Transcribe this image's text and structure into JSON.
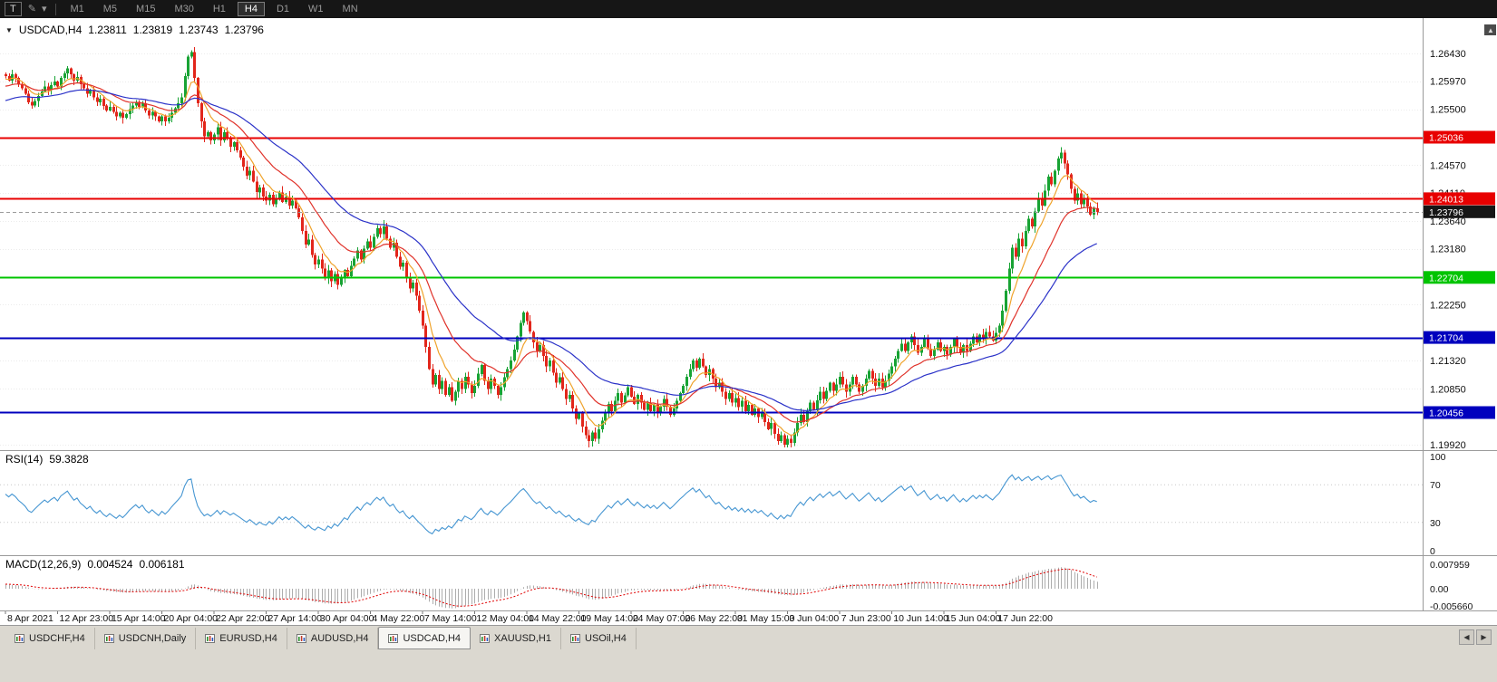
{
  "toolbar": {
    "t_button": "T",
    "pencil_icon": "✎",
    "caret_icon": "▾",
    "timeframes": [
      "M1",
      "M5",
      "M15",
      "M30",
      "H1",
      "H4",
      "D1",
      "W1",
      "MN"
    ],
    "active_timeframe": "H4"
  },
  "header": {
    "symbol": "USDCAD,H4",
    "open": "1.23811",
    "high": "1.23819",
    "low": "1.23743",
    "close": "1.23796"
  },
  "price_axis": {
    "ticks": [
      "1.26430",
      "1.25970",
      "1.25500",
      "1.24570",
      "1.24110",
      "1.23640",
      "1.23180",
      "1.22250",
      "1.21320",
      "1.20850",
      "1.19920"
    ],
    "levels": [
      {
        "value": "1.25036",
        "color": "#E80000"
      },
      {
        "value": "1.24013",
        "color": "#E80000"
      },
      {
        "value": "1.22704",
        "color": "#00C400"
      },
      {
        "value": "1.21704",
        "color": "#0000BE"
      },
      {
        "value": "1.20456",
        "color": "#0000BE"
      }
    ],
    "current": {
      "value": "1.23796",
      "color": "#161616"
    }
  },
  "time_axis": {
    "labels": [
      "8 Apr 2021",
      "12 Apr 23:00",
      "15 Apr 14:00",
      "20 Apr 04:00",
      "22 Apr 22:00",
      "27 Apr 14:00",
      "30 Apr 04:00",
      "4 May 22:00",
      "7 May 14:00",
      "12 May 04:00",
      "14 May 22:00",
      "19 May 14:00",
      "24 May 07:00",
      "26 May 22:00",
      "31 May 15:00",
      "3 Jun 04:00",
      "7 Jun 23:00",
      "10 Jun 14:00",
      "15 Jun 04:00",
      "17 Jun 22:00"
    ]
  },
  "rsi": {
    "name": "RSI(14)",
    "value": "59.3828",
    "scale": [
      100,
      70,
      30,
      0
    ],
    "color": "#4696D2",
    "level_lines": [
      70,
      30
    ]
  },
  "macd": {
    "name": "MACD(12,26,9)",
    "value_main": "0.004524",
    "value_signal": "0.006181",
    "scale": [
      "0.007959",
      "0.00",
      "-0.005660"
    ],
    "histogram_color": "#ADADAD",
    "signal_color": "#E00000"
  },
  "tabs": {
    "items": [
      "USDCHF,H4",
      "USDCNH,Daily",
      "EURUSD,H4",
      "AUDUSD,H4",
      "USDCAD,H4",
      "XAUUSD,H1",
      "USOil,H4"
    ],
    "active_index": 4
  },
  "chart_data": {
    "type": "candlestick",
    "symbol": "USDCAD",
    "timeframe": "H4",
    "title": "USDCAD,H4",
    "current_candle": {
      "open": 1.23811,
      "high": 1.23819,
      "low": 1.23743,
      "close": 1.23796
    },
    "price_range_visible": [
      1.19845,
      1.26897
    ],
    "horizontal_levels": [
      1.25036,
      1.24013,
      1.22704,
      1.21704,
      1.20456
    ],
    "colors": {
      "up": "#18A334",
      "down": "#E2261B",
      "ma_fast": "#EFA32B",
      "ma_mid": "#E0332B",
      "ma_slow": "#2B32C8"
    },
    "x_label_step_candles": 16,
    "warmup": [
      1.248,
      1.2492,
      1.2505,
      1.2498,
      1.2512,
      1.2525,
      1.2518,
      1.2532,
      1.2545,
      1.2538,
      1.2552,
      1.2565,
      1.2558,
      1.2545,
      1.2558,
      1.2572,
      1.2585,
      1.2578,
      1.2565,
      1.2578,
      1.2592,
      1.2585,
      1.2572,
      1.2585,
      1.2598,
      1.259,
      1.2578,
      1.259,
      1.2602,
      1.2595,
      1.2582,
      1.257,
      1.2582,
      1.2595,
      1.2588,
      1.26,
      1.2612,
      1.2605,
      1.2595,
      1.2608
    ],
    "closes": [
      1.2605,
      1.2598,
      1.2608,
      1.2602,
      1.2592,
      1.2585,
      1.2576,
      1.2562,
      1.2556,
      1.2564,
      1.2572,
      1.258,
      1.2588,
      1.2582,
      1.259,
      1.2596,
      1.2588,
      1.2602,
      1.261,
      1.2618,
      1.2608,
      1.2598,
      1.2604,
      1.2592,
      1.2585,
      1.2576,
      1.2582,
      1.257,
      1.2562,
      1.2568,
      1.2556,
      1.2548,
      1.2554,
      1.2546,
      1.2538,
      1.2544,
      1.2536,
      1.2542,
      1.255,
      1.2556,
      1.2562,
      1.2554,
      1.256,
      1.2548,
      1.254,
      1.2546,
      1.2538,
      1.253,
      1.2538,
      1.253,
      1.2536,
      1.2544,
      1.2552,
      1.256,
      1.257,
      1.2605,
      1.2638,
      1.2645,
      1.2602,
      1.256,
      1.253,
      1.2505,
      1.2512,
      1.2498,
      1.2508,
      1.252,
      1.2498,
      1.2512,
      1.2502,
      1.2488,
      1.2495,
      1.2482,
      1.247,
      1.2455,
      1.244,
      1.2448,
      1.243,
      1.2412,
      1.242,
      1.2405,
      1.2398,
      1.2408,
      1.2392,
      1.2401,
      1.2412,
      1.2396,
      1.2404,
      1.239,
      1.2398,
      1.2385,
      1.237,
      1.2348,
      1.2325,
      1.2333,
      1.2308,
      1.2292,
      1.23,
      1.2285,
      1.227,
      1.2282,
      1.2264,
      1.2276,
      1.2258,
      1.227,
      1.2283,
      1.2272,
      1.229,
      1.2302,
      1.2315,
      1.23,
      1.2318,
      1.233,
      1.232,
      1.2338,
      1.2352,
      1.2342,
      1.2355,
      1.2335,
      1.232,
      1.2328,
      1.2305,
      1.2288,
      1.2295,
      1.227,
      1.2252,
      1.2262,
      1.224,
      1.2215,
      1.219,
      1.2155,
      1.2118,
      1.2092,
      1.2108,
      1.2085,
      1.2098,
      1.2075,
      1.2088,
      1.2065,
      1.208,
      1.2098,
      1.2085,
      1.2105,
      1.2092,
      1.2078,
      1.209,
      1.211,
      1.2125,
      1.2098,
      1.2085,
      1.2102,
      1.209,
      1.2075,
      1.2088,
      1.2104,
      1.2118,
      1.2132,
      1.215,
      1.2172,
      1.2195,
      1.2212,
      1.2198,
      1.218,
      1.2162,
      1.2148,
      1.2158,
      1.214,
      1.2122,
      1.2132,
      1.2112,
      1.2095,
      1.2104,
      1.2085,
      1.2068,
      1.2075,
      1.2052,
      1.2035,
      1.2044,
      1.2022,
      1.2008,
      1.1998,
      1.2012,
      1.2002,
      1.2018,
      1.2032,
      1.2045,
      1.206,
      1.2048,
      1.2065,
      1.2078,
      1.2062,
      1.2074,
      1.2088,
      1.2072,
      1.206,
      1.2075,
      1.2062,
      1.205,
      1.2062,
      1.2048,
      1.2058,
      1.2044,
      1.2055,
      1.2068,
      1.2055,
      1.2042,
      1.2052,
      1.2065,
      1.2078,
      1.209,
      1.2105,
      1.2118,
      1.2132,
      1.212,
      1.2135,
      1.2122,
      1.2108,
      1.2118,
      1.2102,
      1.2088,
      1.2095,
      1.208,
      1.2068,
      1.2078,
      1.2062,
      1.207,
      1.2055,
      1.2065,
      1.2048,
      1.2058,
      1.2042,
      1.2052,
      1.2038,
      1.2045,
      1.203,
      1.2018,
      1.2028,
      1.201,
      1.1998,
      1.2008,
      1.1992,
      1.2002,
      1.1995,
      1.2012,
      1.2028,
      1.2042,
      1.203,
      1.2048,
      1.2062,
      1.205,
      1.2066,
      1.208,
      1.2068,
      1.2082,
      1.2095,
      1.2082,
      1.2092,
      1.2105,
      1.2092,
      1.208,
      1.2092,
      1.2105,
      1.2092,
      1.208,
      1.209,
      1.2102,
      1.2115,
      1.2102,
      1.209,
      1.2102,
      1.2088,
      1.2098,
      1.211,
      1.2122,
      1.2135,
      1.2148,
      1.216,
      1.2148,
      1.2162,
      1.2172,
      1.2158,
      1.2145,
      1.2155,
      1.2168,
      1.2152,
      1.214,
      1.215,
      1.2162,
      1.2148,
      1.2155,
      1.2142,
      1.2155,
      1.2168,
      1.2155,
      1.2145,
      1.2158,
      1.2148,
      1.216,
      1.2172,
      1.2162,
      1.2175,
      1.2168,
      1.218,
      1.2172,
      1.2165,
      1.2178,
      1.219,
      1.2215,
      1.2248,
      1.2285,
      1.232,
      1.2305,
      1.2335,
      1.2322,
      1.2348,
      1.2368,
      1.2355,
      1.238,
      1.2402,
      1.239,
      1.2415,
      1.2438,
      1.2425,
      1.2448,
      1.2468,
      1.2478,
      1.246,
      1.2442,
      1.2418,
      1.2398,
      1.241,
      1.2392,
      1.2402,
      1.2388,
      1.2375,
      1.2385,
      1.23796
    ]
  }
}
